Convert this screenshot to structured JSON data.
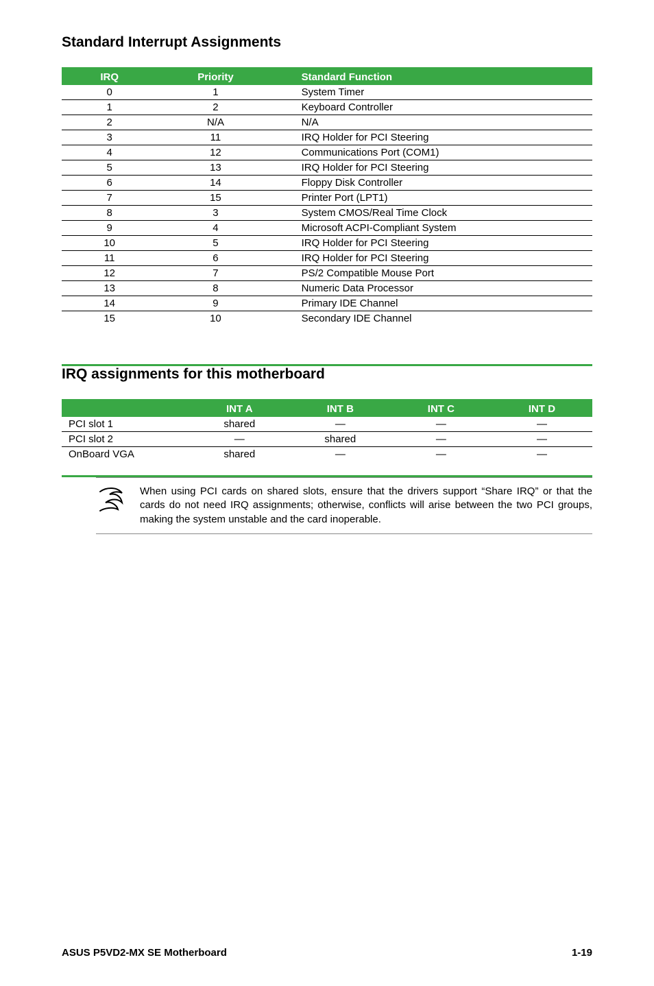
{
  "headings": {
    "sia": "Standard Interrupt Assignments",
    "irq_assign": "IRQ assignments for this motherboard"
  },
  "colors": {
    "header_bg": "#39a845",
    "header_fg": "#ffffff",
    "table_border": "#39a845",
    "row_border": "#000000"
  },
  "irq_table": {
    "columns": [
      "IRQ",
      "Priority",
      "Standard Function"
    ],
    "rows": [
      [
        "0",
        "1",
        "System Timer"
      ],
      [
        "1",
        "2",
        "Keyboard Controller"
      ],
      [
        "2",
        "N/A",
        "N/A"
      ],
      [
        "3",
        "11",
        "IRQ Holder for PCI Steering"
      ],
      [
        "4",
        "12",
        "Communications Port (COM1)"
      ],
      [
        "5",
        "13",
        "IRQ Holder for PCI Steering"
      ],
      [
        "6",
        "14",
        "Floppy Disk Controller"
      ],
      [
        "7",
        "15",
        "Printer Port (LPT1)"
      ],
      [
        "8",
        "3",
        "System CMOS/Real Time Clock"
      ],
      [
        "9",
        "4",
        "Microsoft ACPI-Compliant System"
      ],
      [
        "10",
        "5",
        "IRQ Holder for PCI Steering"
      ],
      [
        "11",
        "6",
        "IRQ Holder for PCI Steering"
      ],
      [
        "12",
        "7",
        "PS/2 Compatible Mouse Port"
      ],
      [
        "13",
        "8",
        "Numeric Data Processor"
      ],
      [
        "14",
        "9",
        "Primary IDE Channel"
      ],
      [
        "15",
        "10",
        "Secondary IDE Channel"
      ]
    ]
  },
  "int_table": {
    "columns": [
      "",
      "INT A",
      "INT B",
      "INT C",
      "INT D"
    ],
    "rows": [
      [
        "PCI slot 1",
        "shared",
        "—",
        "—",
        "—"
      ],
      [
        "PCI slot 2",
        "—",
        "shared",
        "—",
        "—"
      ],
      [
        "OnBoard VGA",
        "shared",
        "—",
        "—",
        "—"
      ]
    ]
  },
  "note": "When using PCI cards on shared slots, ensure that the drivers support “Share IRQ” or that the cards do not need IRQ assignments; otherwise, conflicts will arise between the two PCI groups, making the system unstable and the card inoperable.",
  "footer": {
    "left": "ASUS P5VD2-MX SE Motherboard",
    "right": "1-19"
  }
}
